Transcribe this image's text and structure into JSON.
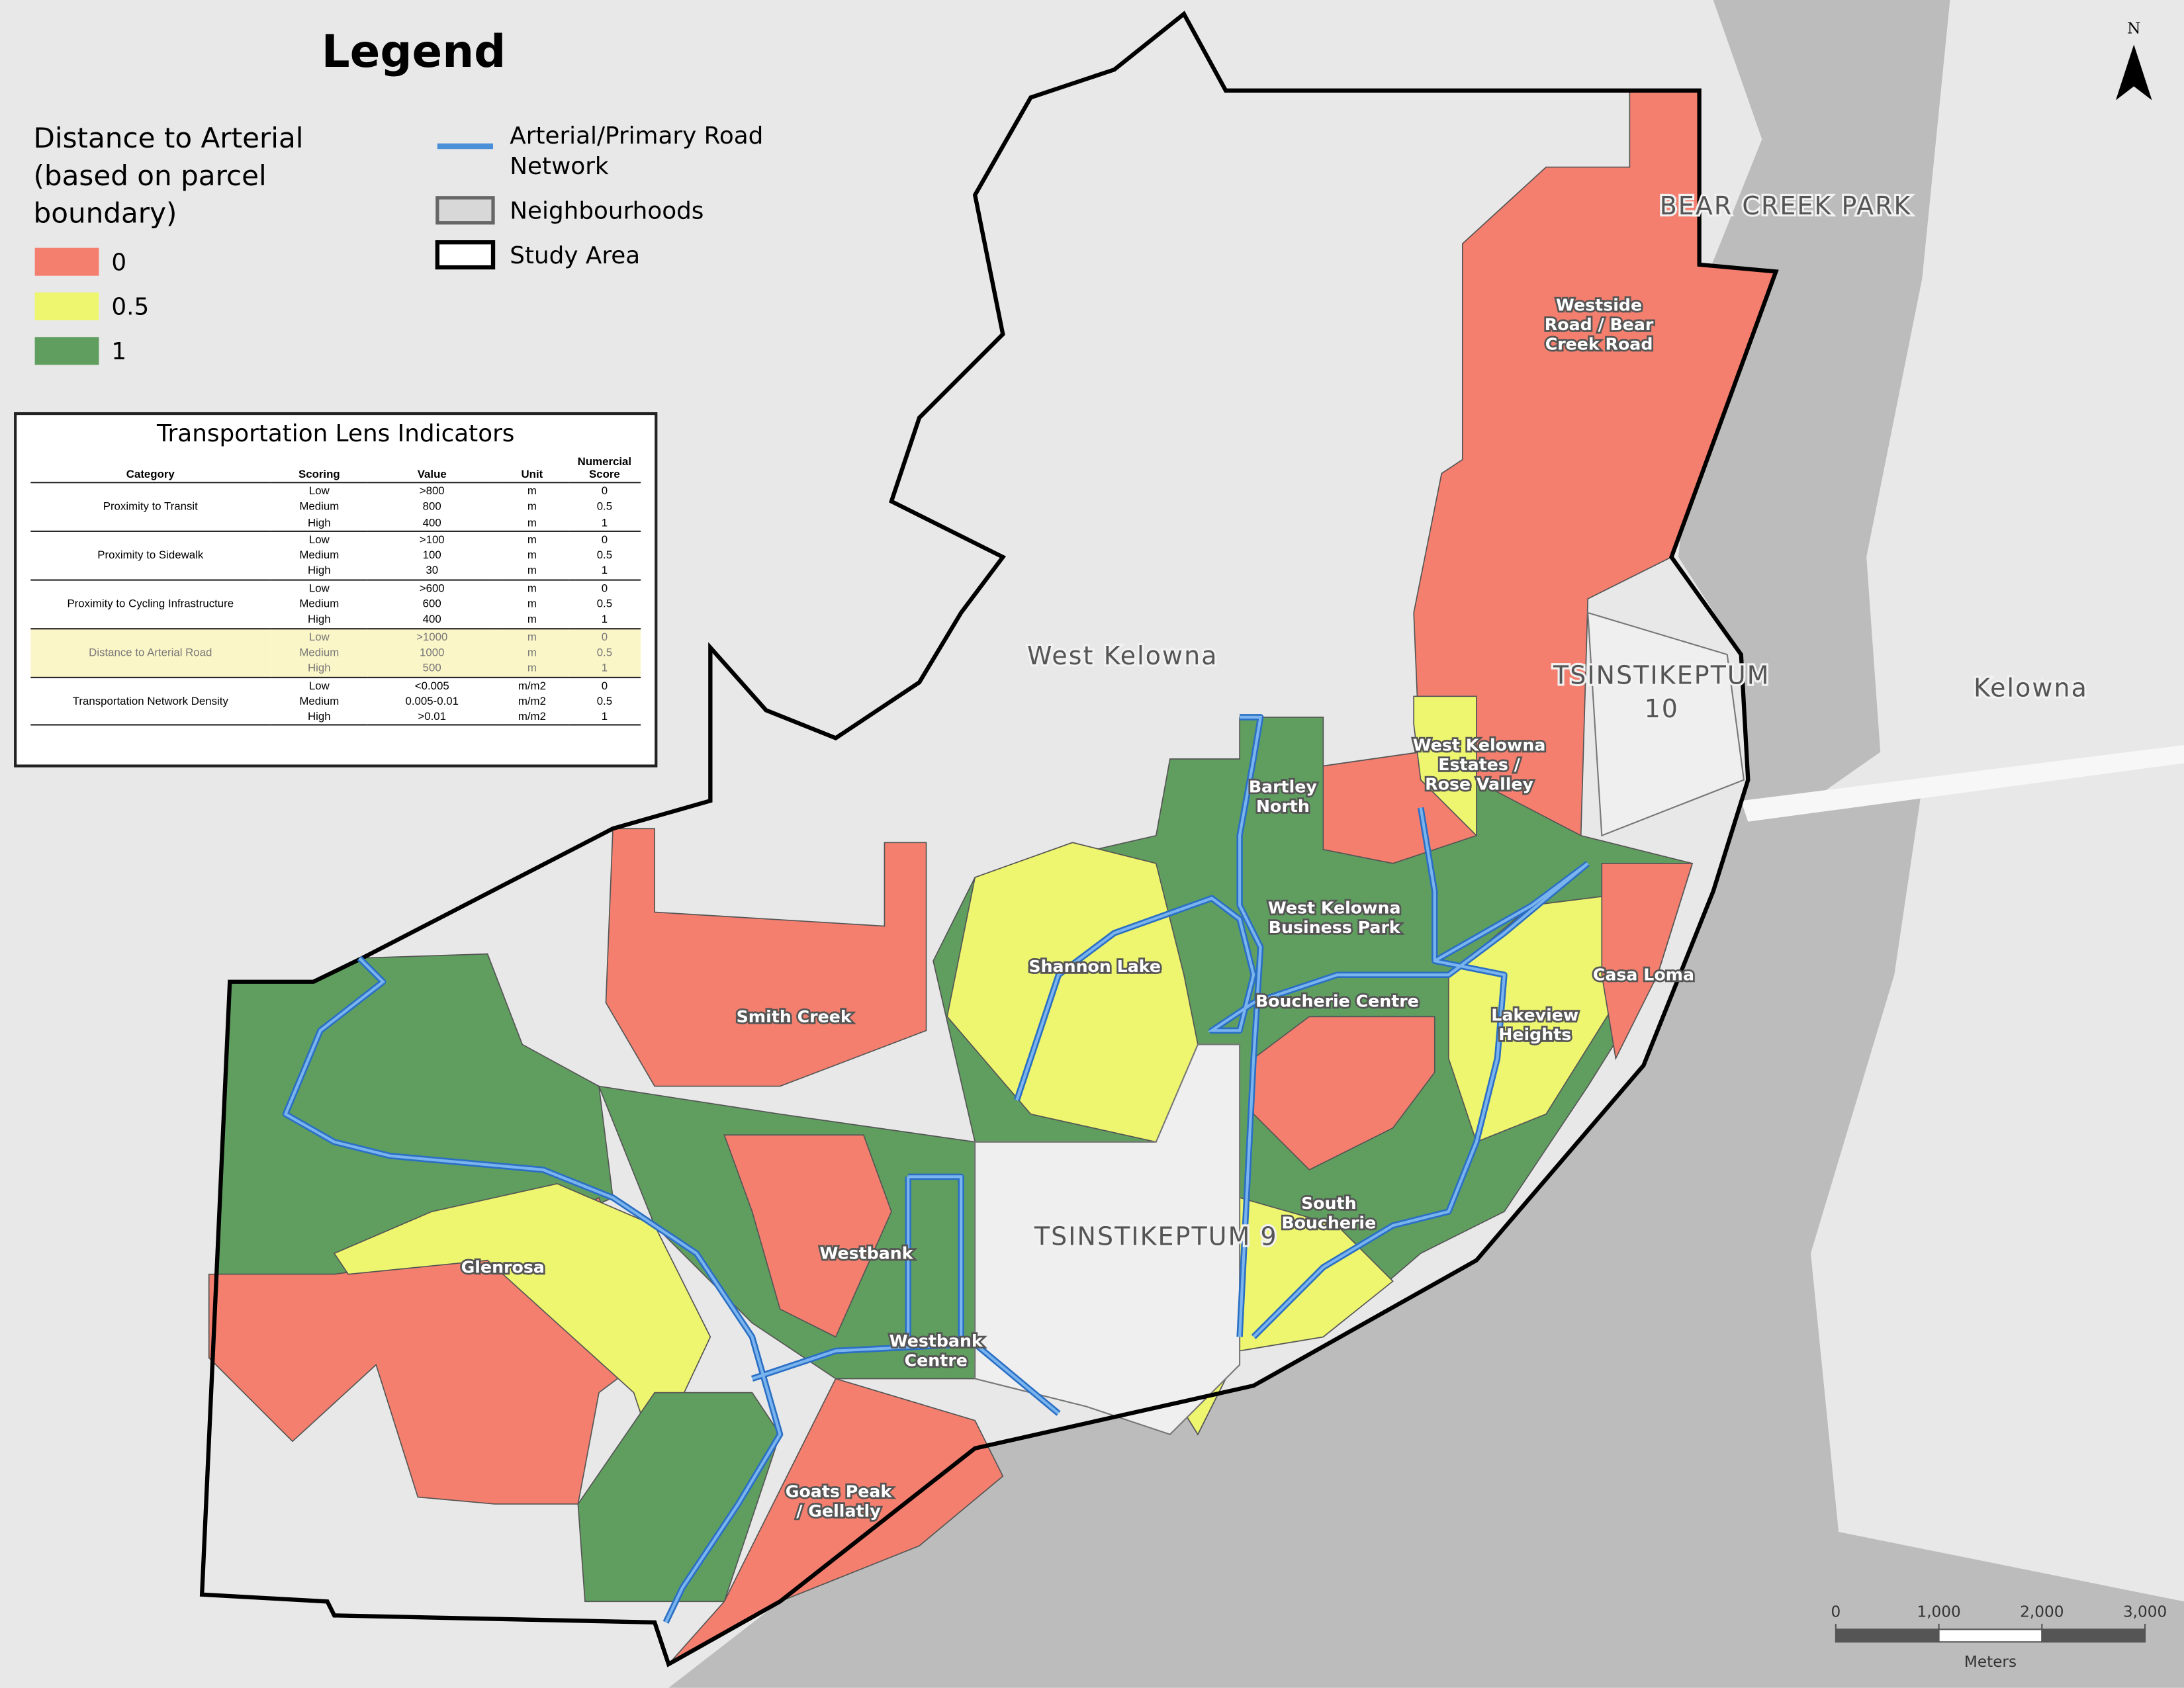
{
  "legend": {
    "title": "Legend",
    "heading": [
      "Distance to Arterial",
      "(based on parcel",
      "boundary)"
    ],
    "classes": [
      {
        "label": 0,
        "color": "#f47f6e"
      },
      {
        "label": 0.5,
        "color": "#eef56e"
      },
      {
        "label": 1,
        "color": "#5f9e5f"
      }
    ],
    "layers": [
      {
        "lines": [
          "Arterial/Primary Road",
          "Network"
        ]
      },
      {
        "lines": [
          "Neighbourhoods"
        ]
      },
      {
        "lines": [
          "Study Area"
        ]
      }
    ]
  },
  "table": {
    "title": "Transportation Lens Indicators",
    "columns": [
      "Category",
      "Scoring",
      "Value",
      "Unit",
      "Numercial Score"
    ],
    "highlight_group": 3,
    "groups": [
      {
        "category": "Proximity to Transit",
        "rows": [
          [
            "Low",
            ">800",
            "m",
            0
          ],
          [
            "Medium",
            800,
            "m",
            0.5
          ],
          [
            "High",
            400,
            "m",
            1
          ]
        ]
      },
      {
        "category": "Proximity to Sidewalk",
        "rows": [
          [
            "Low",
            ">100",
            "m",
            0
          ],
          [
            "Medium",
            100,
            "m",
            0.5
          ],
          [
            "High",
            30,
            "m",
            1
          ]
        ]
      },
      {
        "category": "Proximity to Cycling Infrastructure",
        "rows": [
          [
            "Low",
            ">600",
            "m",
            0
          ],
          [
            "Medium",
            600,
            "m",
            0.5
          ],
          [
            "High",
            400,
            "m",
            1
          ]
        ]
      },
      {
        "category": "Distance to Arterial Road",
        "rows": [
          [
            "Low",
            ">1000",
            "m",
            0
          ],
          [
            "Medium",
            1000,
            "m",
            0.5
          ],
          [
            "High",
            500,
            "m",
            1
          ]
        ]
      },
      {
        "category": "Transportation Network Density",
        "rows": [
          [
            "Low",
            "<0.005",
            "m/m2",
            0
          ],
          [
            "Medium",
            "0.005-0.01",
            "m/m2",
            0.5
          ],
          [
            "High",
            ">0.01",
            "m/m2",
            1
          ]
        ]
      }
    ]
  },
  "places": [
    {
      "lines": [
        "West Kelowna"
      ]
    },
    {
      "lines": [
        "TSINSTIKEPTUM",
        "10"
      ]
    },
    {
      "lines": [
        "Kelowna"
      ]
    },
    {
      "lines": [
        "BEAR CREEK PARK"
      ]
    },
    {
      "lines": [
        "Westside",
        "Road / Bear",
        "Creek Road"
      ]
    },
    {
      "lines": [
        "West Kelowna",
        "Estates /",
        "Rose Valley"
      ]
    },
    {
      "lines": [
        "Bartley",
        "North"
      ]
    },
    {
      "lines": [
        "West Kelowna",
        "Business Park"
      ]
    },
    {
      "lines": [
        "Shannon Lake"
      ]
    },
    {
      "lines": [
        "Boucherie Centre"
      ]
    },
    {
      "lines": [
        "Casa Loma"
      ]
    },
    {
      "lines": [
        "Lakeview",
        "Heights"
      ]
    },
    {
      "lines": [
        "Smith Creek"
      ]
    },
    {
      "lines": [
        "TSINSTIKEPTUM 9"
      ]
    },
    {
      "lines": [
        "South",
        "Boucherie"
      ]
    },
    {
      "lines": [
        "Westbank"
      ]
    },
    {
      "lines": [
        "Glenrosa"
      ]
    },
    {
      "lines": [
        "Westbank",
        "Centre"
      ]
    },
    {
      "lines": [
        "Goats Peak",
        "/ Gellatly"
      ]
    }
  ],
  "scale_bar": {
    "ticks": [
      0,
      {
        "value": 1000,
        "label": "1,000"
      },
      {
        "value": 2000,
        "label": "2,000"
      },
      {
        "value": 3000,
        "label": "3,000"
      }
    ],
    "unit": "Meters"
  },
  "north": "N"
}
